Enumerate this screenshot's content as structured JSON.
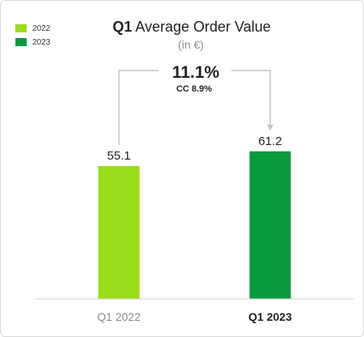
{
  "chart_data": {
    "type": "bar",
    "title_bold": "Q1",
    "title_rest": " Average Order Value",
    "subtitle": "(in €)",
    "categories": [
      "Q1 2022",
      "Q1 2023"
    ],
    "series": [
      {
        "name": "2022",
        "values": [
          55.1,
          null
        ]
      },
      {
        "name": "2023",
        "values": [
          null,
          61.2
        ]
      }
    ],
    "values": [
      55.1,
      61.2
    ],
    "data_labels": [
      "55.1",
      "61.2"
    ],
    "ylim": [
      0,
      90
    ],
    "grid": false,
    "legend_position": "top-left",
    "annotation": {
      "main": "11.1%",
      "sub": "CC 8.9%"
    },
    "colors": {
      "series_2022": "#9ade1b",
      "series_2023": "#0a9a3e",
      "text": "#222222",
      "muted_text": "#8c8c8c",
      "connector": "#c4c4c4",
      "axis": "#d0d0d0"
    }
  }
}
